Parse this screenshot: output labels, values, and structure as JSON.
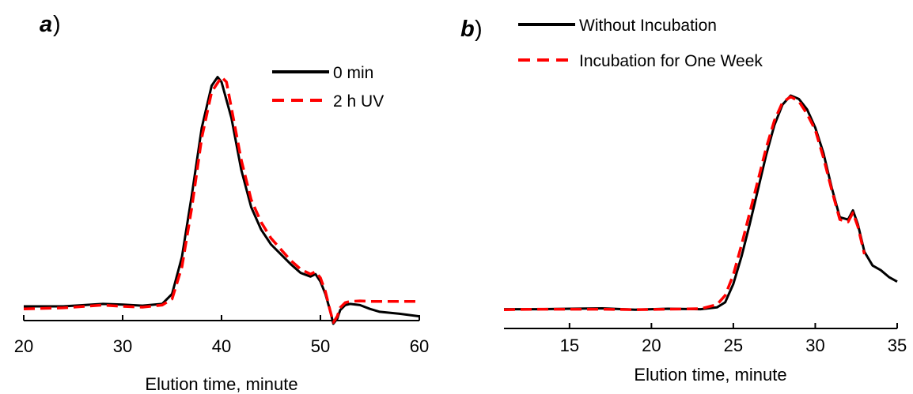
{
  "colors": {
    "series_solid": "#000000",
    "series_dashed": "#ff0000"
  },
  "chart_data": [
    {
      "type": "line",
      "panel_letter": "a",
      "panel_paren": ")",
      "xlabel": "Elution time, minute",
      "ylabel": "",
      "xlim": [
        20,
        60
      ],
      "ylim": [
        0,
        1
      ],
      "xticks": [
        20,
        30,
        40,
        50,
        60
      ],
      "yaxis_visible": false,
      "grid": false,
      "legend_position": "top-right",
      "series": [
        {
          "name": "0 min",
          "style": "solid",
          "color": "#000000",
          "x": [
            20,
            24,
            28,
            30,
            32,
            34,
            35,
            36,
            37,
            38,
            39,
            39.6,
            40,
            41,
            42,
            43,
            44,
            45,
            46,
            47,
            48,
            49,
            49.5,
            50,
            50.5,
            51,
            51.3,
            51.7,
            52,
            52.5,
            53,
            54,
            55,
            56,
            58,
            60
          ],
          "values": [
            0.07,
            0.07,
            0.08,
            0.077,
            0.073,
            0.08,
            0.12,
            0.27,
            0.52,
            0.79,
            0.96,
            0.995,
            0.975,
            0.83,
            0.62,
            0.47,
            0.38,
            0.32,
            0.28,
            0.24,
            0.205,
            0.19,
            0.2,
            0.17,
            0.12,
            0.05,
            0.0,
            0.02,
            0.055,
            0.075,
            0.08,
            0.075,
            0.06,
            0.048,
            0.04,
            0.03
          ]
        },
        {
          "name": "2 h UV",
          "style": "dashed",
          "color": "#ff0000",
          "x": [
            20,
            24,
            28,
            30,
            32,
            34,
            35,
            36,
            37,
            38,
            39,
            40,
            40.5,
            41,
            42,
            43,
            44,
            45,
            46,
            47,
            48,
            49,
            49.5,
            50,
            50.5,
            51,
            51.3,
            51.7,
            52,
            52.5,
            53,
            54,
            55,
            57,
            60
          ],
          "values": [
            0.06,
            0.064,
            0.075,
            0.07,
            0.067,
            0.075,
            0.1,
            0.23,
            0.47,
            0.75,
            0.935,
            0.995,
            0.975,
            0.87,
            0.66,
            0.5,
            0.41,
            0.345,
            0.3,
            0.255,
            0.22,
            0.2,
            0.21,
            0.185,
            0.13,
            0.05,
            0.005,
            0.03,
            0.065,
            0.085,
            0.09,
            0.092,
            0.09,
            0.09,
            0.09
          ]
        }
      ]
    },
    {
      "type": "line",
      "panel_letter": "b",
      "panel_paren": ")",
      "xlabel": "Elution time, minute",
      "ylabel": "",
      "xlim": [
        11,
        35
      ],
      "ylim": [
        0,
        1
      ],
      "xticks": [
        15,
        20,
        25,
        30,
        35
      ],
      "yaxis_visible": false,
      "grid": false,
      "legend_position": "top-left",
      "series": [
        {
          "name": "Without Incubation",
          "style": "solid",
          "color": "#000000",
          "x": [
            11,
            13,
            15,
            17,
            19,
            21,
            23,
            24,
            24.5,
            25,
            25.5,
            26,
            26.5,
            27,
            27.5,
            28,
            28.5,
            29,
            29.5,
            30,
            30.5,
            31,
            31.5,
            32,
            32.3,
            32.6,
            33,
            33.5,
            34,
            34.5,
            35
          ],
          "values": [
            0.07,
            0.07,
            0.072,
            0.074,
            0.068,
            0.072,
            0.07,
            0.078,
            0.1,
            0.18,
            0.3,
            0.44,
            0.59,
            0.74,
            0.87,
            0.96,
            1.0,
            0.985,
            0.94,
            0.86,
            0.75,
            0.6,
            0.47,
            0.46,
            0.5,
            0.44,
            0.32,
            0.26,
            0.24,
            0.21,
            0.19
          ]
        },
        {
          "name": "Incubation for One Week",
          "style": "dashed",
          "color": "#ff0000",
          "x": [
            11,
            13,
            15,
            17,
            19,
            21,
            23,
            24,
            24.5,
            25,
            25.5,
            26,
            26.5,
            27,
            27.5,
            28,
            28.5,
            29,
            29.5,
            30,
            30.5,
            31,
            31.5,
            32,
            32.3,
            32.6,
            33
          ],
          "values": [
            0.068,
            0.07,
            0.07,
            0.07,
            0.068,
            0.07,
            0.072,
            0.09,
            0.13,
            0.22,
            0.35,
            0.49,
            0.63,
            0.77,
            0.89,
            0.97,
            0.995,
            0.975,
            0.92,
            0.85,
            0.73,
            0.59,
            0.46,
            0.45,
            0.49,
            0.43,
            0.31
          ]
        }
      ]
    }
  ]
}
